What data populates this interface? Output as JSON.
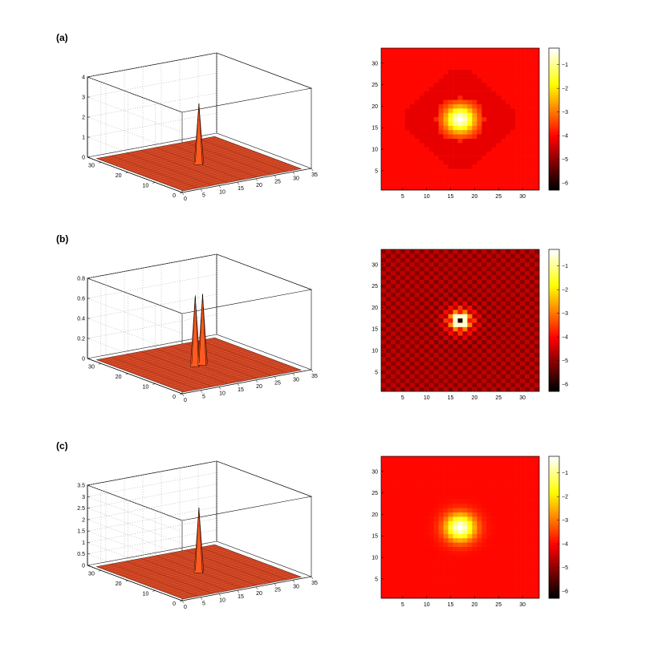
{
  "chart_data": [
    {
      "id": "a",
      "label": "(a)",
      "surface": {
        "type": "surface3d",
        "x_range": [
          0,
          35
        ],
        "y_range": [
          0,
          35
        ],
        "z_range": [
          0,
          4
        ],
        "x_ticks": [
          0,
          5,
          10,
          15,
          20,
          25,
          30,
          35
        ],
        "y_ticks": [
          0,
          10,
          20,
          30
        ],
        "z_ticks": [
          0,
          1,
          2,
          3,
          4
        ],
        "z_tick_labels": [
          "0",
          "1",
          "2",
          "3",
          "4"
        ],
        "peaks": [
          {
            "x": 17,
            "y": 17,
            "z": 3.0
          }
        ],
        "grid": true
      },
      "heatmap": {
        "type": "heatmap",
        "x_range": [
          1,
          33
        ],
        "y_range": [
          1,
          33
        ],
        "x_ticks": [
          5,
          10,
          15,
          20,
          25,
          30
        ],
        "y_ticks": [
          5,
          10,
          15,
          20,
          25,
          30
        ],
        "colorbar_range": [
          -6.3,
          -0.3
        ],
        "colorbar_ticks": [
          -1,
          -2,
          -3,
          -4,
          -5,
          -6
        ],
        "pattern": "smooth-halo",
        "colormap": "hot"
      }
    },
    {
      "id": "b",
      "label": "(b)",
      "surface": {
        "type": "surface3d",
        "x_range": [
          0,
          35
        ],
        "y_range": [
          0,
          35
        ],
        "z_range": [
          0,
          0.8
        ],
        "x_ticks": [
          0,
          5,
          10,
          15,
          20,
          25,
          30,
          35
        ],
        "y_ticks": [
          0,
          10,
          20,
          30
        ],
        "z_ticks": [
          0,
          0.2,
          0.4,
          0.6,
          0.8
        ],
        "z_tick_labels": [
          "0",
          "0.2",
          "0.4",
          "0.6",
          "0.8"
        ],
        "peaks": [
          {
            "x": 16,
            "y": 17,
            "z": 0.7
          },
          {
            "x": 18,
            "y": 17,
            "z": 0.7
          }
        ],
        "grid": true
      },
      "heatmap": {
        "type": "heatmap",
        "x_range": [
          1,
          33
        ],
        "y_range": [
          1,
          33
        ],
        "x_ticks": [
          5,
          10,
          15,
          20,
          25,
          30
        ],
        "y_ticks": [
          5,
          10,
          15,
          20,
          25,
          30
        ],
        "colorbar_range": [
          -6.3,
          -0.3
        ],
        "colorbar_ticks": [
          -1,
          -2,
          -3,
          -4,
          -5,
          -6
        ],
        "pattern": "checkerboard",
        "colormap": "hot"
      }
    },
    {
      "id": "c",
      "label": "(c)",
      "surface": {
        "type": "surface3d",
        "x_range": [
          0,
          35
        ],
        "y_range": [
          0,
          35
        ],
        "z_range": [
          0,
          3.5
        ],
        "x_ticks": [
          0,
          5,
          10,
          15,
          20,
          25,
          30,
          35
        ],
        "y_ticks": [
          0,
          10,
          20,
          30
        ],
        "z_ticks": [
          0,
          0.5,
          1,
          1.5,
          2,
          2.5,
          3,
          3.5
        ],
        "z_tick_labels": [
          "0",
          "0.5",
          "1",
          "1.5",
          "2",
          "2.5",
          "3",
          "3.5"
        ],
        "peaks": [
          {
            "x": 17,
            "y": 17,
            "z": 2.8
          }
        ],
        "grid": true
      },
      "heatmap": {
        "type": "heatmap",
        "x_range": [
          1,
          33
        ],
        "y_range": [
          1,
          33
        ],
        "x_ticks": [
          5,
          10,
          15,
          20,
          25,
          30
        ],
        "y_ticks": [
          5,
          10,
          15,
          20,
          25,
          30
        ],
        "colorbar_range": [
          -6.3,
          -0.3
        ],
        "colorbar_ticks": [
          -1,
          -2,
          -3,
          -4,
          -5,
          -6
        ],
        "pattern": "smooth",
        "colormap": "hot"
      }
    }
  ]
}
